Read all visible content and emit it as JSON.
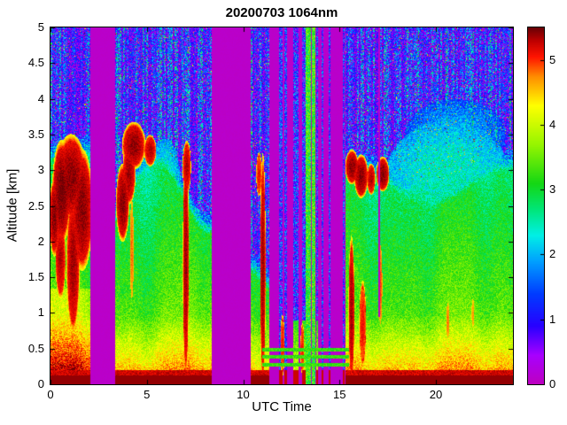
{
  "chart_data": {
    "type": "heatmap",
    "title": "20200703 1064nm",
    "xlabel": "UTC Time",
    "ylabel": "Altitude [km]",
    "xlim": [
      0,
      24
    ],
    "ylim": [
      0,
      5
    ],
    "xticks": [
      0,
      5,
      10,
      15,
      20
    ],
    "yticks": [
      0,
      0.5,
      1,
      1.5,
      2,
      2.5,
      3,
      3.5,
      4,
      4.5,
      5
    ],
    "colorbar": {
      "min": 0,
      "max": 5.5,
      "ticks": [
        0,
        1,
        2,
        3,
        4,
        5
      ],
      "colormap": "jet-with-magenta-low"
    },
    "model": {
      "gap_value": 0.05,
      "gaps": [
        [
          2.05,
          3.35
        ],
        [
          8.35,
          10.35
        ],
        [
          11.35,
          11.62
        ],
        [
          12.25,
          12.58
        ]
      ],
      "thin_gaps": [
        [
          16.98,
          17.1,
          0.95
        ]
      ],
      "stripes": [
        [
          11.62,
          12.25,
          0.35
        ],
        [
          12.58,
          13.95,
          0.38
        ],
        [
          13.95,
          15.3,
          0.72
        ]
      ],
      "green_cols": [
        [
          13.22,
          13.48
        ],
        [
          13.55,
          13.72
        ]
      ],
      "hlines": {
        "trange": [
          10.95,
          15.45
        ],
        "bands": [
          [
            0.26,
            0.31
          ],
          [
            0.36,
            0.41
          ],
          [
            0.46,
            0.51
          ]
        ]
      },
      "tops": [
        [
          0,
          2.05,
          3.4,
          0.1,
          1.0,
          0
        ],
        [
          3.35,
          8.35,
          2.9,
          0.5,
          1.1,
          -4.4
        ],
        [
          10.35,
          11.35,
          1.7,
          0.15,
          2.0,
          0
        ],
        [
          15.3,
          24,
          3.05,
          0.25,
          0.8,
          1.5
        ]
      ],
      "clouds": [
        [
          0.18,
          2.35,
          0.22,
          0.45,
          5.3
        ],
        [
          0.55,
          2.7,
          0.4,
          0.6,
          5.35
        ],
        [
          1.05,
          2.9,
          0.65,
          0.5,
          5.3
        ],
        [
          1.62,
          2.45,
          0.45,
          0.7,
          5.3
        ],
        [
          1.15,
          1.7,
          0.28,
          0.8,
          5.25
        ],
        [
          0.5,
          1.75,
          0.22,
          0.45,
          5.2
        ],
        [
          3.72,
          2.55,
          0.28,
          0.45,
          5.3
        ],
        [
          4.05,
          2.95,
          0.28,
          0.35,
          5.25
        ],
        [
          4.3,
          3.35,
          0.5,
          0.27,
          5.3
        ],
        [
          5.15,
          3.28,
          0.26,
          0.18,
          5.2
        ],
        [
          4.2,
          1.9,
          0.1,
          0.7,
          4.7
        ],
        [
          7.0,
          1.7,
          0.13,
          1.35,
          5.25
        ],
        [
          7.05,
          3.05,
          0.18,
          0.3,
          5.2
        ],
        [
          11.0,
          1.6,
          0.12,
          1.35,
          5.25
        ],
        [
          10.8,
          2.95,
          0.12,
          0.25,
          5.0
        ],
        [
          12.02,
          0.55,
          0.09,
          0.35,
          5.0
        ],
        [
          13.05,
          0.5,
          0.08,
          0.3,
          5.0
        ],
        [
          15.6,
          1.05,
          0.13,
          0.85,
          5.25
        ],
        [
          15.62,
          3.05,
          0.28,
          0.2,
          5.3
        ],
        [
          16.1,
          2.92,
          0.3,
          0.25,
          5.3
        ],
        [
          16.62,
          2.88,
          0.18,
          0.18,
          5.2
        ],
        [
          17.22,
          2.95,
          0.28,
          0.2,
          5.3
        ],
        [
          16.18,
          0.85,
          0.15,
          0.5,
          5.0
        ],
        [
          17.1,
          1.4,
          0.1,
          0.55,
          4.8
        ],
        [
          20.6,
          0.9,
          0.08,
          0.25,
          4.7
        ],
        [
          21.9,
          1.0,
          0.07,
          0.2,
          4.6
        ]
      ],
      "plumes": [
        [
          20.6,
          2.85,
          3.3,
          0.85,
          2.5
        ],
        [
          19.2,
          2.3,
          1.6,
          0.6,
          2.8
        ],
        [
          22.9,
          2.5,
          1.3,
          0.75,
          2.6
        ],
        [
          17.9,
          2.5,
          0.9,
          0.5,
          2.4
        ],
        [
          21.0,
          3.5,
          2.6,
          0.5,
          2.0
        ],
        [
          5.9,
          2.9,
          0.8,
          0.55,
          2.4
        ]
      ],
      "cstops": [
        [
          0.0,
          190,
          0,
          190
        ],
        [
          0.45,
          168,
          0,
          255
        ],
        [
          0.9,
          40,
          0,
          255
        ],
        [
          1.4,
          0,
          60,
          255
        ],
        [
          1.9,
          0,
          160,
          255
        ],
        [
          2.3,
          0,
          240,
          230
        ],
        [
          2.7,
          0,
          230,
          120
        ],
        [
          3.1,
          20,
          215,
          20
        ],
        [
          3.7,
          150,
          245,
          0
        ],
        [
          4.3,
          255,
          255,
          0
        ],
        [
          4.75,
          255,
          140,
          0
        ],
        [
          5.05,
          255,
          20,
          0
        ],
        [
          5.3,
          190,
          0,
          0
        ],
        [
          5.5,
          105,
          0,
          5
        ]
      ]
    }
  }
}
